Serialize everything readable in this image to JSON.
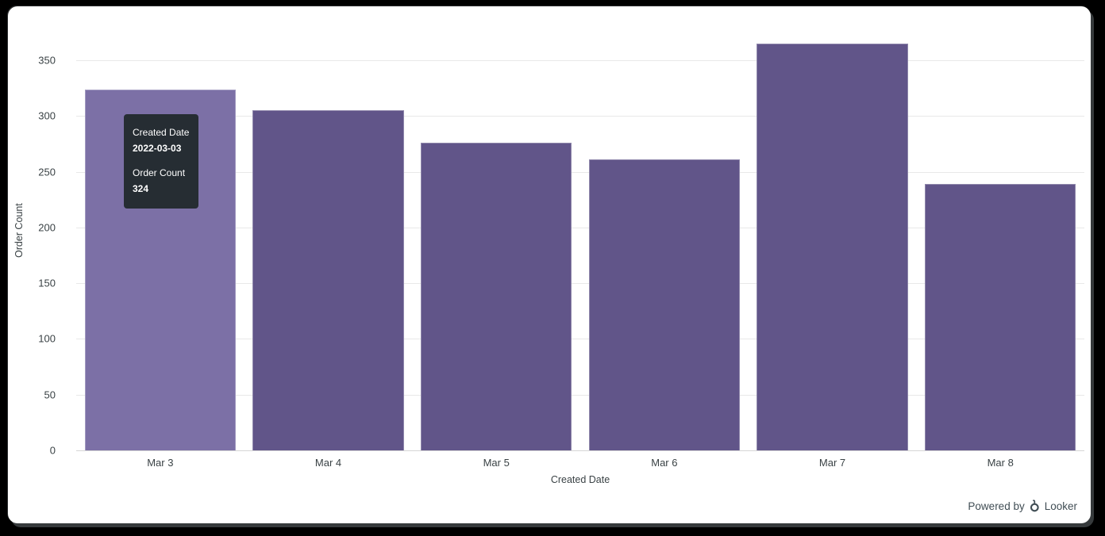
{
  "frame": {
    "background": "#000000",
    "panel_background": "#ffffff"
  },
  "chart_data": {
    "type": "bar",
    "title": "",
    "xlabel": "Created Date",
    "ylabel": "Order Count",
    "categories": [
      "Mar 3",
      "Mar 4",
      "Mar 5",
      "Mar 6",
      "Mar 7",
      "Mar 8"
    ],
    "values": [
      324,
      305,
      276,
      261,
      365,
      239
    ],
    "ylim": [
      0,
      365
    ],
    "yticks": [
      0,
      50,
      100,
      150,
      200,
      250,
      300,
      350
    ],
    "grid": true,
    "legend": "none",
    "bar_color": "#615589",
    "bar_hover_color": "#7C70A6",
    "hovered_index": 0
  },
  "tooltip": {
    "background": "#262d33",
    "text_color": "#ffffff",
    "field_label": "Created Date",
    "field_value": "2022-03-03",
    "measure_label": "Order Count",
    "measure_value": "324"
  },
  "footer": {
    "powered_by": "Powered by",
    "brand": "Looker"
  }
}
